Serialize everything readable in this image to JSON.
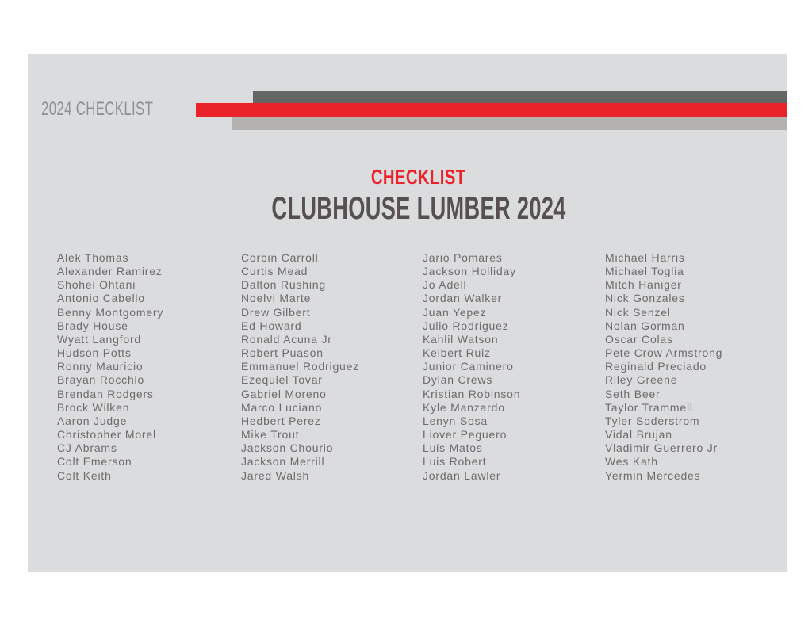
{
  "document": {
    "corner_label": "2024 CHECKLIST",
    "eyebrow": "CHECKLIST",
    "title": "CLUBHOUSE LUMBER 2024"
  },
  "colors": {
    "accent_red": "#ea232a",
    "bar_dark_gray": "#656767",
    "bar_light_gray": "#b3b2b1",
    "panel_gray": "#dbdcde",
    "title_gray": "#575051",
    "name_text_gray": "#6f6a6b",
    "corner_label_gray": "#8e9092"
  },
  "checklist_columns": [
    [
      "Alek Thomas",
      "Alexander Ramirez",
      "Shohei Ohtani",
      "Antonio Cabello",
      "Benny Montgomery",
      "Brady House",
      "Wyatt Langford",
      "Hudson Potts",
      "Ronny Mauricio",
      "Brayan Rocchio",
      "Brendan Rodgers",
      "Brock Wilken",
      "Aaron Judge",
      "Christopher Morel",
      "CJ Abrams",
      "Colt Emerson",
      "Colt Keith"
    ],
    [
      "Corbin Carroll",
      "Curtis Mead",
      "Dalton Rushing",
      "Noelvi Marte",
      "Drew Gilbert",
      "Ed Howard",
      "Ronald Acuna Jr",
      "Robert Puason",
      "Emmanuel Rodriguez",
      "Ezequiel Tovar",
      "Gabriel Moreno",
      "Marco Luciano",
      "Hedbert Perez",
      "Mike Trout",
      "Jackson Chourio",
      "Jackson Merrill",
      "Jared Walsh"
    ],
    [
      "Jario Pomares",
      "Jackson Holliday",
      "Jo Adell",
      "Jordan Walker",
      "Juan Yepez",
      "Julio Rodriguez",
      "Kahlil Watson",
      "Keibert Ruiz",
      "Junior Caminero",
      "Dylan Crews",
      "Kristian Robinson",
      "Kyle Manzardo",
      "Lenyn Sosa",
      "Liover Peguero",
      "Luis Matos",
      "Luis Robert",
      "Jordan Lawler"
    ],
    [
      "Michael Harris",
      "Michael Toglia",
      "Mitch Haniger",
      "Nick Gonzales",
      "Nick Senzel",
      "Nolan Gorman",
      "Oscar Colas",
      "Pete Crow Armstrong",
      "Reginald Preciado",
      "Riley Greene",
      "Seth Beer",
      "Taylor Trammell",
      "Tyler Soderstrom",
      "Vidal Brujan",
      "Vladimir Guerrero Jr",
      "Wes Kath",
      "Yermin Mercedes"
    ]
  ]
}
